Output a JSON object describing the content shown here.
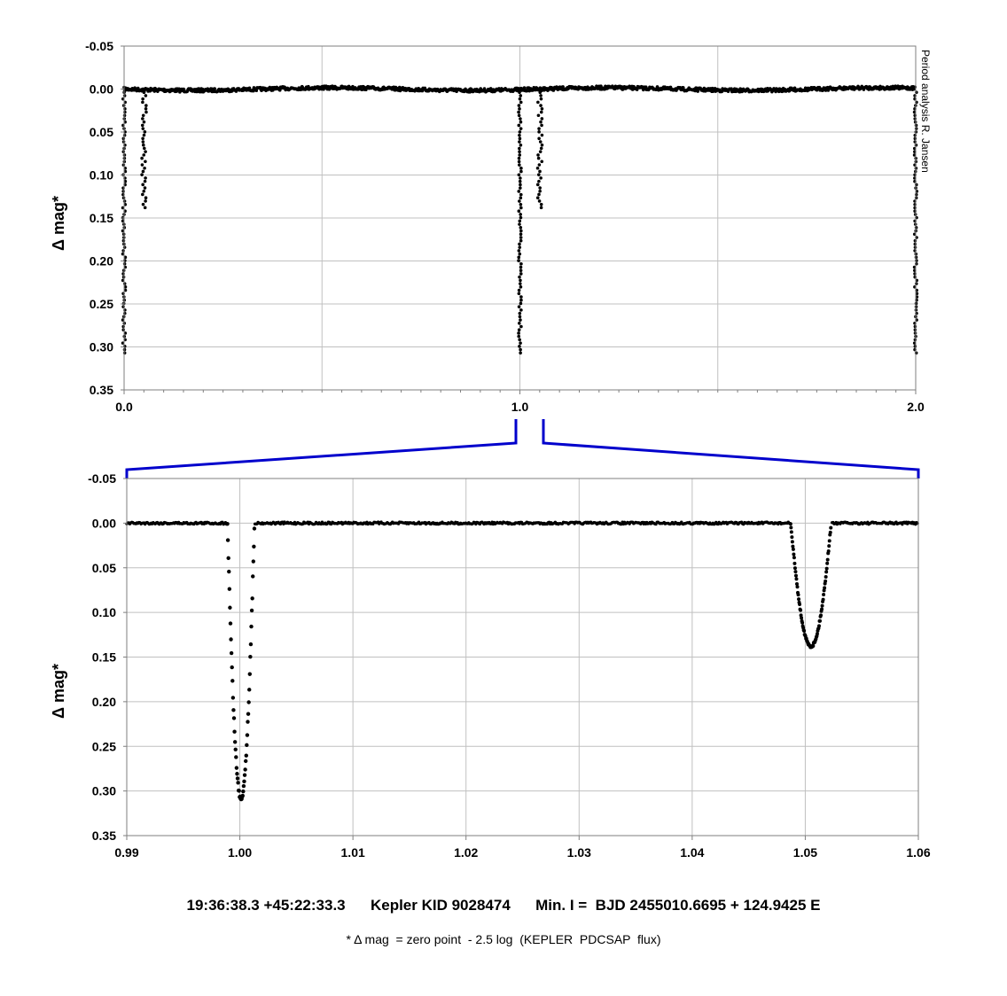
{
  "credit": "Period analysis  R. Jansen",
  "footer": {
    "coords": "19:36:38.3 +45:22:33.3",
    "target": "Kepler KID 9028474",
    "ephemeris": "Min. I =  BJD 2455010.6695 + 124.9425 E",
    "note": "* Δ mag  = zero point  - 2.5 log  (KEPLER  PDCSAP  flux)"
  },
  "colors": {
    "zoom_connector": "#0000cc",
    "grid": "#c0c0c0",
    "points": "#000000"
  },
  "chart_data": [
    {
      "type": "scatter",
      "title": "",
      "xlabel": "",
      "ylabel": "Δ mag*",
      "xlim": [
        0.0,
        2.0
      ],
      "ylim": [
        -0.05,
        0.35
      ],
      "y_inverted": true,
      "x_ticks": [
        "0.0",
        "1.0",
        "2.0"
      ],
      "y_ticks": [
        "-0.05",
        "0.00",
        "0.05",
        "0.10",
        "0.15",
        "0.20",
        "0.25",
        "0.30",
        "0.35"
      ],
      "grid": true,
      "primary_eclipses": [
        {
          "phase": 0.0,
          "depth": 0.307
        },
        {
          "phase": 1.0,
          "depth": 0.307
        },
        {
          "phase": 2.0,
          "depth": 0.307
        }
      ],
      "secondary_eclipses": [
        {
          "phase": 0.0505,
          "depth": 0.138
        },
        {
          "phase": 1.0505,
          "depth": 0.138
        }
      ],
      "baseline": 0.0
    },
    {
      "type": "scatter",
      "title": "",
      "xlabel": "",
      "ylabel": "Δ mag*",
      "xlim": [
        0.99,
        1.06
      ],
      "ylim": [
        -0.05,
        0.35
      ],
      "y_inverted": true,
      "x_ticks": [
        "0.99",
        "1.00",
        "1.01",
        "1.02",
        "1.03",
        "1.04",
        "1.05",
        "1.06"
      ],
      "y_ticks": [
        "-0.05",
        "0.00",
        "0.05",
        "0.10",
        "0.15",
        "0.20",
        "0.25",
        "0.30",
        "0.35"
      ],
      "grid": true,
      "primary_eclipse": {
        "center": 1.0001,
        "half_width": 0.0012,
        "depth": 0.308
      },
      "secondary_eclipse": {
        "center": 1.0505,
        "half_width": 0.0018,
        "depth": 0.138
      },
      "baseline": 0.0
    }
  ]
}
